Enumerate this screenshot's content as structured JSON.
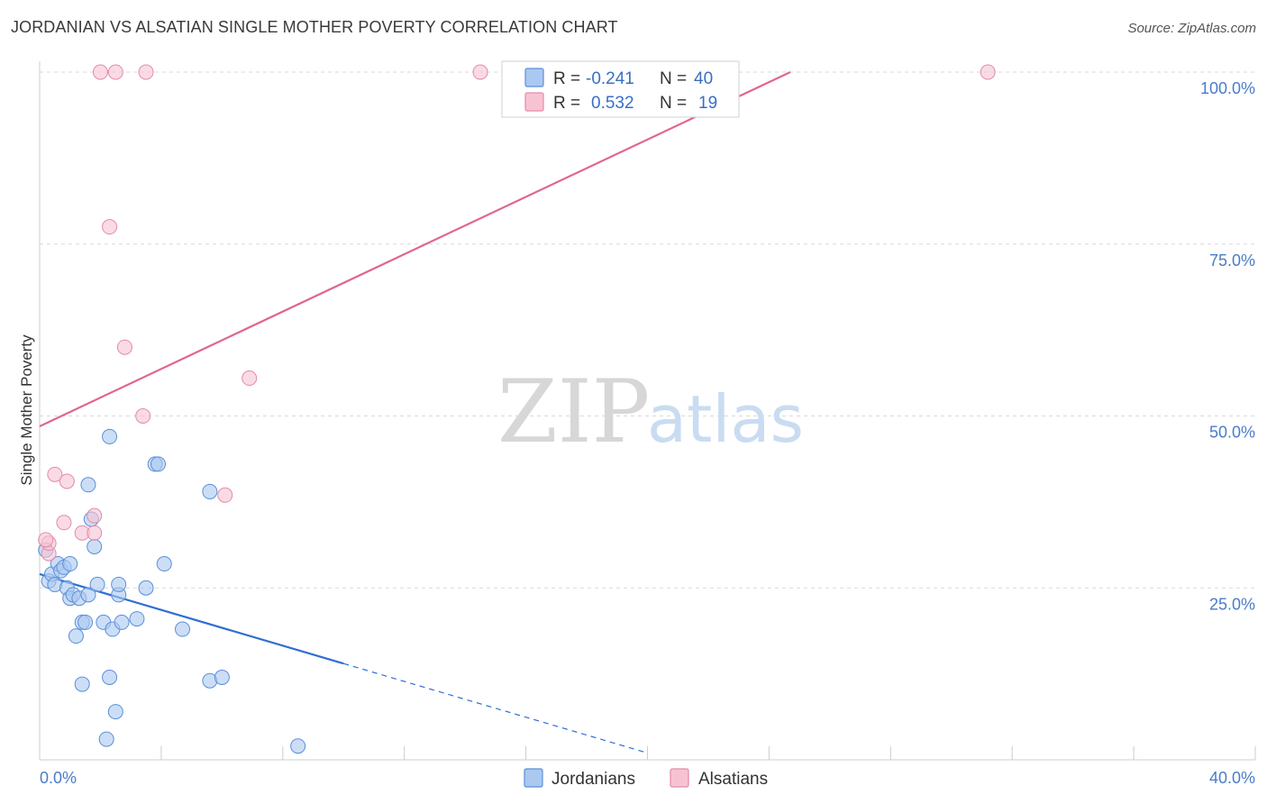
{
  "title": "JORDANIAN VS ALSATIAN SINGLE MOTHER POVERTY CORRELATION CHART",
  "source": "Source: ZipAtlas.com",
  "watermark": {
    "zip": "ZIP",
    "atlas": "atlas"
  },
  "colors": {
    "blue_fill": "#aac8f0",
    "blue_stroke": "#5a8fd8",
    "blue_line": "#2f6fd1",
    "pink_fill": "#f7c3d3",
    "pink_stroke": "#e58aa7",
    "pink_line": "#e0668f",
    "grid": "#d9d9d9",
    "tick_label": "#4a7cc9"
  },
  "legend": {
    "rows": [
      {
        "r_label": "R =",
        "r_value": "-0.241",
        "n_label": "N =",
        "n_value": "40"
      },
      {
        "r_label": "R =",
        "r_value": "0.532",
        "n_label": "N =",
        "n_value": "19"
      }
    ]
  },
  "chart_data": {
    "type": "scatter",
    "title": "JORDANIAN VS ALSATIAN SINGLE MOTHER POVERTY CORRELATION CHART",
    "xlabel": "",
    "ylabel": "Single Mother Poverty",
    "xlim": [
      0,
      40
    ],
    "ylim": [
      0,
      100
    ],
    "x_tick_labels": [
      "0.0%",
      "40.0%"
    ],
    "y_ticks": [
      25,
      50,
      75,
      100
    ],
    "y_tick_labels": [
      "25.0%",
      "50.0%",
      "75.0%",
      "100.0%"
    ],
    "grid": true,
    "legend_position": "top-center",
    "series": [
      {
        "name": "Jordanians",
        "r": -0.241,
        "n": 40,
        "points": [
          [
            0.2,
            30.5
          ],
          [
            0.3,
            26.0
          ],
          [
            0.4,
            27.0
          ],
          [
            0.5,
            25.5
          ],
          [
            0.6,
            28.5
          ],
          [
            0.7,
            27.5
          ],
          [
            0.8,
            28.0
          ],
          [
            0.9,
            25.0
          ],
          [
            1.0,
            23.5
          ],
          [
            1.0,
            28.5
          ],
          [
            1.1,
            24.0
          ],
          [
            1.2,
            18.0
          ],
          [
            1.3,
            23.5
          ],
          [
            1.4,
            11.0
          ],
          [
            1.4,
            20.0
          ],
          [
            1.5,
            20.0
          ],
          [
            1.6,
            24.0
          ],
          [
            1.6,
            40.0
          ],
          [
            1.7,
            35.0
          ],
          [
            1.8,
            31.0
          ],
          [
            1.9,
            25.5
          ],
          [
            2.1,
            20.0
          ],
          [
            2.2,
            3.0
          ],
          [
            2.3,
            12.0
          ],
          [
            2.4,
            19.0
          ],
          [
            2.5,
            7.0
          ],
          [
            2.6,
            24.0
          ],
          [
            2.6,
            25.5
          ],
          [
            2.7,
            20.0
          ],
          [
            2.3,
            47.0
          ],
          [
            3.2,
            20.5
          ],
          [
            3.5,
            25.0
          ],
          [
            3.8,
            43.0
          ],
          [
            3.9,
            43.0
          ],
          [
            4.1,
            28.5
          ],
          [
            4.7,
            19.0
          ],
          [
            5.6,
            39.0
          ],
          [
            5.6,
            11.5
          ],
          [
            6.0,
            12.0
          ],
          [
            8.5,
            2.0
          ]
        ]
      },
      {
        "name": "Alsatians",
        "r": 0.532,
        "n": 19,
        "points": [
          [
            0.3,
            30.0
          ],
          [
            0.3,
            31.5
          ],
          [
            0.5,
            41.5
          ],
          [
            0.8,
            34.5
          ],
          [
            0.9,
            40.5
          ],
          [
            1.4,
            33.0
          ],
          [
            1.8,
            35.5
          ],
          [
            1.8,
            33.0
          ],
          [
            2.0,
            100.0
          ],
          [
            2.3,
            77.5
          ],
          [
            2.5,
            100.0
          ],
          [
            2.8,
            60.0
          ],
          [
            3.4,
            50.0
          ],
          [
            3.5,
            100.0
          ],
          [
            6.1,
            38.5
          ],
          [
            6.9,
            55.5
          ],
          [
            14.5,
            100.0
          ],
          [
            31.2,
            100.0
          ],
          [
            0.2,
            32.0
          ]
        ]
      }
    ],
    "trendlines": [
      {
        "series": "Jordanians",
        "x0": 0,
        "y0": 27.0,
        "x1": 10.0,
        "y1": 14.0,
        "dashed_to_x": 20.0,
        "dashed_to_y": 1.0
      },
      {
        "series": "Alsatians",
        "x0": 0,
        "y0": 48.5,
        "x1": 24.7,
        "y1": 100.0
      }
    ]
  }
}
